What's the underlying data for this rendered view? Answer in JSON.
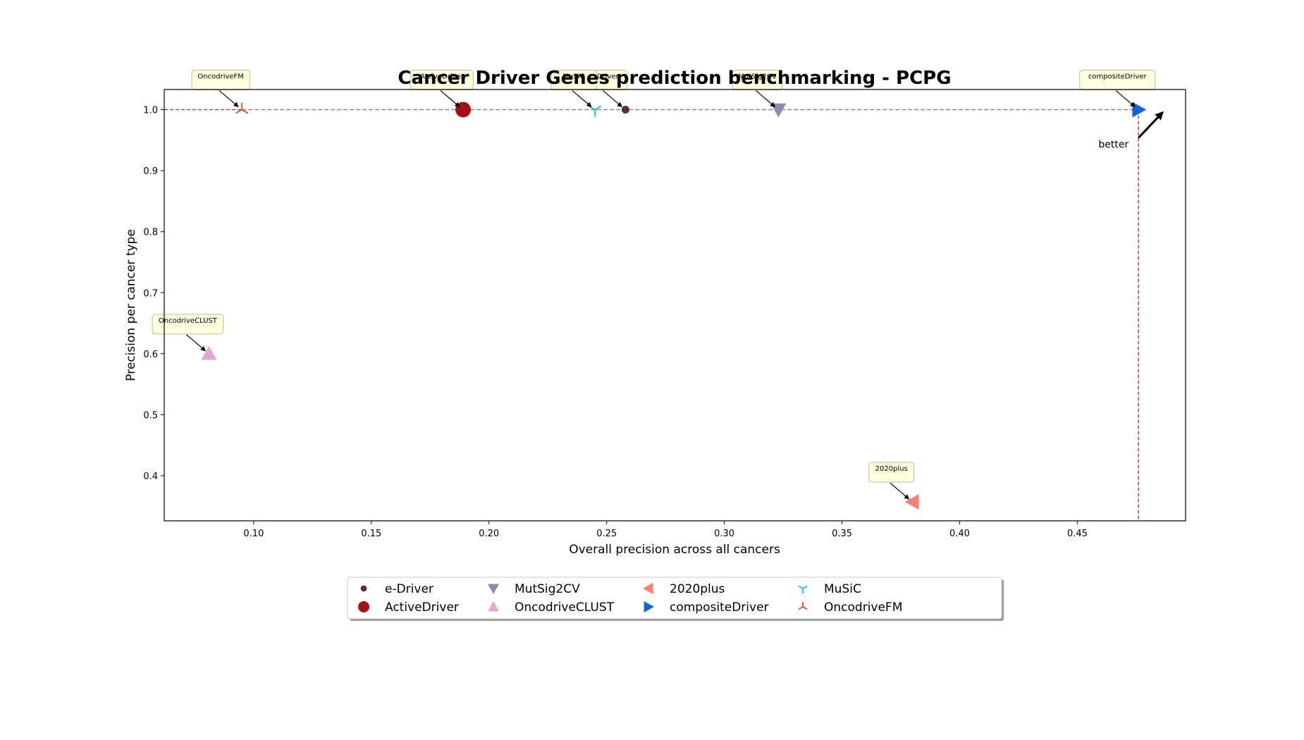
{
  "chart_data": {
    "type": "scatter",
    "title": "Cancer Driver Genes prediction benchmarking - PCPG",
    "xlabel": "Overall precision across all cancers",
    "ylabel": "Precision per cancer type",
    "xlim": [
      0.062,
      0.496
    ],
    "ylim": [
      0.326,
      1.033
    ],
    "xticks": [
      "0.10",
      "0.15",
      "0.20",
      "0.25",
      "0.30",
      "0.35",
      "0.40",
      "0.45"
    ],
    "yticks": [
      "0.4",
      "0.5",
      "0.6",
      "0.7",
      "0.8",
      "0.9",
      "1.0"
    ],
    "grid": false,
    "legend_position": "below-center",
    "pareto_front": "dashed line through the top points at y = 1.0",
    "optimal_cutoff": {
      "x": 0.476,
      "y": 1.0
    },
    "better_label": "better",
    "series": [
      {
        "name": "e-Driver",
        "x": 0.258,
        "y": 1.0,
        "marker": "circle-small",
        "color": "#5a2a44",
        "annotation": "e-Driver"
      },
      {
        "name": "ActiveDriver",
        "x": 0.189,
        "y": 1.0,
        "marker": "circle",
        "color": "#a50f15",
        "annotation": "ActiveDriver"
      },
      {
        "name": "MutSig2CV",
        "x": 0.323,
        "y": 1.0,
        "marker": "triangle-down",
        "color": "#8e8aaf",
        "annotation": "MutSig2CV"
      },
      {
        "name": "OncodriveCLUST",
        "x": 0.081,
        "y": 0.6,
        "marker": "triangle-up",
        "color": "#e7a6d8",
        "annotation": "OncodriveCLUST"
      },
      {
        "name": "2020plus",
        "x": 0.38,
        "y": 0.357,
        "marker": "triangle-left",
        "color": "#fb8072",
        "annotation": "2020plus"
      },
      {
        "name": "compositeDriver",
        "x": 0.476,
        "y": 1.0,
        "marker": "triangle-right",
        "color": "#1464d9",
        "annotation": "compositeDriver"
      },
      {
        "name": "MuSiC",
        "x": 0.245,
        "y": 1.0,
        "marker": "tri-down",
        "color": "#17becf",
        "annotation": "MuSiC"
      },
      {
        "name": "OncodriveFM",
        "x": 0.095,
        "y": 1.0,
        "marker": "tri-up",
        "color": "#e6492d",
        "annotation": "OncodriveFM"
      }
    ]
  }
}
